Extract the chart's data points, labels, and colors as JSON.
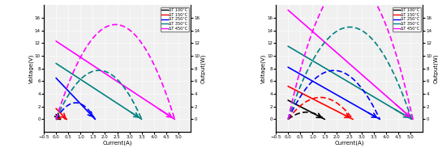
{
  "left": {
    "colors": [
      "black",
      "red",
      "blue",
      "teal",
      "magenta"
    ],
    "labels": [
      "ΔT 100°C",
      "ΔT 150°C",
      "ΔT 250°C",
      "ΔT 350°C",
      "ΔT 450°C"
    ],
    "vi_lines": [
      {
        "isc": 0.18,
        "voc": 0.75
      },
      {
        "isc": 0.43,
        "voc": 1.7
      },
      {
        "isc": 1.6,
        "voc": 6.5
      },
      {
        "isc": 3.5,
        "voc": 8.8
      },
      {
        "isc": 4.85,
        "voc": 12.3
      }
    ],
    "xlim": [
      -0.5,
      5.5
    ],
    "ylim_v": [
      -2,
      18
    ],
    "ylim_p": [
      -2,
      18
    ],
    "yticks_v": [
      0,
      2,
      4,
      6,
      8,
      10,
      12,
      14,
      16
    ],
    "yticks_p": [
      0,
      2,
      4,
      6,
      8,
      10,
      12,
      14,
      16
    ],
    "xticks": [
      -0.5,
      0.0,
      0.5,
      1.0,
      1.5,
      2.0,
      2.5,
      3.0,
      3.5,
      4.0,
      4.5,
      5.0
    ],
    "xlabel": "Current(A)",
    "ylabel_left": "Voltage(V)",
    "ylabel_right": "Output(W)"
  },
  "right": {
    "colors": [
      "black",
      "red",
      "blue",
      "teal",
      "magenta"
    ],
    "labels": [
      "ΔT 100°C",
      "ΔT 150°C",
      "ΔT 250°C",
      "ΔT 350°C",
      "ΔT 450°C"
    ],
    "vi_lines": [
      {
        "isc": 1.5,
        "voc": 3.0
      },
      {
        "isc": 2.65,
        "voc": 5.2
      },
      {
        "isc": 3.75,
        "voc": 8.2
      },
      {
        "isc": 5.05,
        "voc": 11.5
      },
      {
        "isc": 5.1,
        "voc": 17.2
      }
    ],
    "xlim": [
      -0.5,
      5.5
    ],
    "ylim_v": [
      -2,
      18
    ],
    "ylim_p": [
      -2,
      18
    ],
    "yticks_v": [
      0,
      2,
      4,
      6,
      8,
      10,
      12,
      14,
      16
    ],
    "yticks_p": [
      0,
      2,
      4,
      6,
      8,
      10,
      12,
      14,
      16
    ],
    "xticks": [
      -0.5,
      0.0,
      0.5,
      1.0,
      1.5,
      2.0,
      2.5,
      3.0,
      3.5,
      4.0,
      4.5,
      5.0
    ],
    "xlabel": "Current(A)",
    "ylabel_left": "Voltage(V)",
    "ylabel_right": "Output(W)"
  }
}
